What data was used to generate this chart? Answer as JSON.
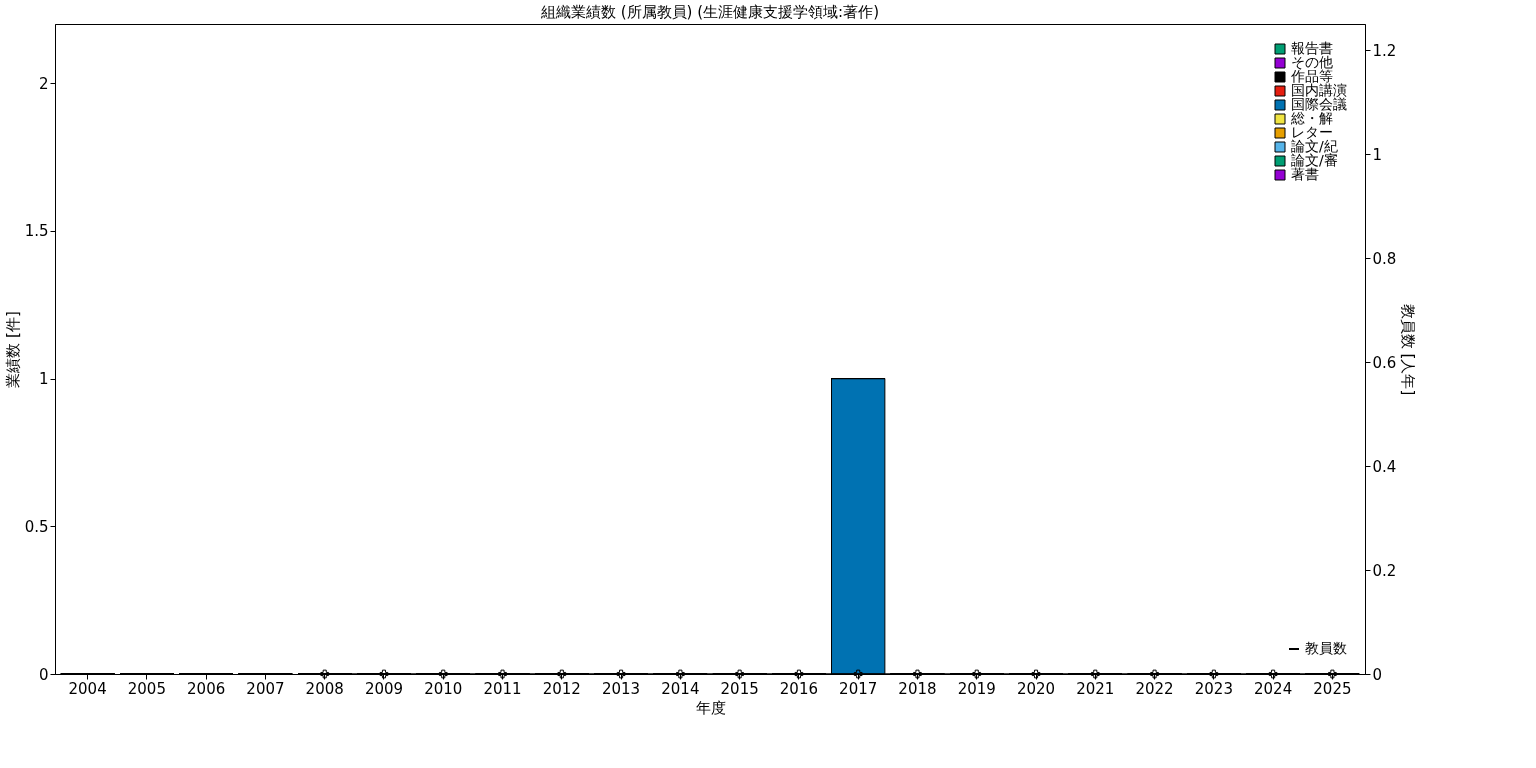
{
  "chart_data": {
    "type": "bar",
    "title": "組織業績数 (所属教員) (生涯健康支援学領域:著作)",
    "xlabel": "年度",
    "ylabel": "業績数 [件]",
    "y2label": "教員数 [人年]",
    "categories": [
      "2004",
      "2005",
      "2006",
      "2007",
      "2008",
      "2009",
      "2010",
      "2011",
      "2012",
      "2013",
      "2014",
      "2015",
      "2016",
      "2017",
      "2018",
      "2019",
      "2020",
      "2021",
      "2022",
      "2023",
      "2024",
      "2025"
    ],
    "stacked": true,
    "ylim": [
      0,
      2.2
    ],
    "yticks": [
      0,
      0.5,
      1,
      1.5,
      2
    ],
    "y2lim": [
      0,
      1.25
    ],
    "y2ticks": [
      0,
      0.2,
      0.4,
      0.6,
      0.8,
      1,
      1.2
    ],
    "grid": false,
    "legend": "top right",
    "series": [
      {
        "name": "著書",
        "color": "#9400d3",
        "values": [
          0,
          0,
          0,
          0,
          0,
          0,
          0,
          0,
          0,
          0,
          0,
          0,
          0,
          0,
          0,
          0,
          0,
          0,
          0,
          0,
          0,
          0
        ]
      },
      {
        "name": "論文/審",
        "color": "#009e73",
        "values": [
          0,
          0,
          0,
          0,
          0,
          0,
          0,
          0,
          0,
          0,
          0,
          0,
          0,
          0,
          0,
          0,
          0,
          0,
          0,
          0,
          0,
          0
        ]
      },
      {
        "name": "論文/紀",
        "color": "#56b4e9",
        "values": [
          0,
          0,
          0,
          0,
          0,
          0,
          0,
          0,
          0,
          0,
          0,
          0,
          0,
          0,
          0,
          0,
          0,
          0,
          0,
          0,
          0,
          0
        ]
      },
      {
        "name": "レター",
        "color": "#e69f00",
        "values": [
          0,
          0,
          0,
          0,
          0,
          0,
          0,
          0,
          0,
          0,
          0,
          0,
          0,
          0,
          0,
          0,
          0,
          0,
          0,
          0,
          0,
          0
        ]
      },
      {
        "name": "総・解",
        "color": "#f0e442",
        "values": [
          0,
          0,
          0,
          0,
          0,
          0,
          0,
          0,
          0,
          0,
          0,
          0,
          0,
          0,
          0,
          0,
          0,
          0,
          0,
          0,
          0,
          0
        ]
      },
      {
        "name": "国際会議",
        "color": "#0072b2",
        "values": [
          0,
          0,
          0,
          0,
          0,
          0,
          0,
          0,
          0,
          0,
          0,
          0,
          0,
          1,
          0,
          0,
          0,
          0,
          0,
          0,
          0,
          0
        ]
      },
      {
        "name": "国内講演",
        "color": "#e51e10",
        "values": [
          0,
          0,
          0,
          0,
          0,
          0,
          0,
          0,
          0,
          0,
          0,
          0,
          0,
          0,
          0,
          0,
          0,
          0,
          0,
          0,
          0,
          0
        ]
      },
      {
        "name": "作品等",
        "color": "#000000",
        "values": [
          0,
          0,
          0,
          0,
          0,
          0,
          0,
          0,
          0,
          0,
          0,
          0,
          0,
          0,
          0,
          0,
          0,
          0,
          0,
          0,
          0,
          0
        ]
      },
      {
        "name": "その他",
        "color": "#9400d3",
        "values": [
          0,
          0,
          0,
          0,
          0,
          0,
          0,
          0,
          0,
          0,
          0,
          0,
          0,
          0,
          0,
          0,
          0,
          0,
          0,
          0,
          0,
          0
        ]
      },
      {
        "name": "報告書",
        "color": "#009e73",
        "values": [
          0,
          0,
          0,
          0,
          0,
          0,
          0,
          0,
          0,
          0,
          0,
          0,
          0,
          0,
          0,
          0,
          0,
          0,
          0,
          0,
          0,
          0
        ]
      },
      {
        "name": "教員数",
        "color": "#000000",
        "type": "line",
        "axis": "y2",
        "marker": "cross",
        "line_style": "solid",
        "values": [
          null,
          null,
          null,
          null,
          0,
          0,
          0,
          0,
          0,
          0,
          0,
          0,
          0,
          0,
          0,
          0,
          0,
          0,
          0,
          0,
          0,
          0
        ]
      }
    ]
  }
}
